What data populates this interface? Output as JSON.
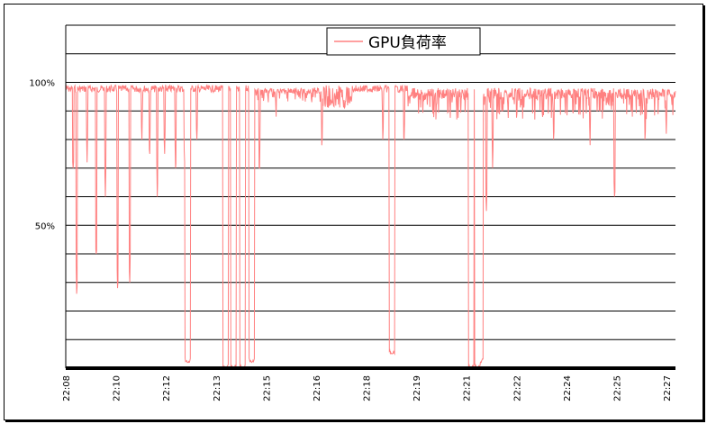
{
  "chart_data": {
    "type": "line",
    "title": "",
    "xlabel": "",
    "ylabel": "",
    "ylim": [
      0,
      120
    ],
    "y_ticks": [
      {
        "value": 50,
        "label": "50%"
      },
      {
        "value": 100,
        "label": "100%"
      }
    ],
    "grid_lines": [
      10,
      20,
      30,
      40,
      50,
      60,
      70,
      80,
      90,
      100,
      110,
      120
    ],
    "x_tick_labels": [
      "22:08",
      "22:10",
      "22:12",
      "22:13",
      "22:15",
      "22:16",
      "22:18",
      "22:19",
      "22:21",
      "22:22",
      "22:24",
      "22:25",
      "22:27"
    ],
    "legend": {
      "position": "top-center"
    },
    "grid": true,
    "series": [
      {
        "name": "GPU負荷率",
        "color": "#ff8080",
        "baseline_band": [
          88,
          99
        ],
        "dips": [
          {
            "x": 0.012,
            "y": 70
          },
          {
            "x": 0.018,
            "y": 26
          },
          {
            "x": 0.035,
            "y": 72
          },
          {
            "x": 0.05,
            "y": 40
          },
          {
            "x": 0.065,
            "y": 60
          },
          {
            "x": 0.085,
            "y": 28
          },
          {
            "x": 0.105,
            "y": 30
          },
          {
            "x": 0.125,
            "y": 80
          },
          {
            "x": 0.138,
            "y": 75
          },
          {
            "x": 0.15,
            "y": 60
          },
          {
            "x": 0.162,
            "y": 75
          },
          {
            "x": 0.18,
            "y": 70
          },
          {
            "x": 0.195,
            "y": 72
          },
          {
            "x": 0.2,
            "y": 2
          },
          {
            "x": 0.215,
            "y": 80
          },
          {
            "x": 0.262,
            "y": 0
          },
          {
            "x": 0.275,
            "y": 0
          },
          {
            "x": 0.29,
            "y": 0
          },
          {
            "x": 0.305,
            "y": 2
          },
          {
            "x": 0.318,
            "y": 70
          },
          {
            "x": 0.345,
            "y": 88
          },
          {
            "x": 0.42,
            "y": 78
          },
          {
            "x": 0.52,
            "y": 80
          },
          {
            "x": 0.535,
            "y": 5
          },
          {
            "x": 0.555,
            "y": 80
          },
          {
            "x": 0.665,
            "y": 0
          },
          {
            "x": 0.675,
            "y": 0
          },
          {
            "x": 0.68,
            "y": 2
          },
          {
            "x": 0.69,
            "y": 55
          },
          {
            "x": 0.7,
            "y": 70
          },
          {
            "x": 0.8,
            "y": 80
          },
          {
            "x": 0.86,
            "y": 78
          },
          {
            "x": 0.9,
            "y": 60
          },
          {
            "x": 0.95,
            "y": 80
          },
          {
            "x": 0.985,
            "y": 82
          }
        ]
      }
    ]
  }
}
